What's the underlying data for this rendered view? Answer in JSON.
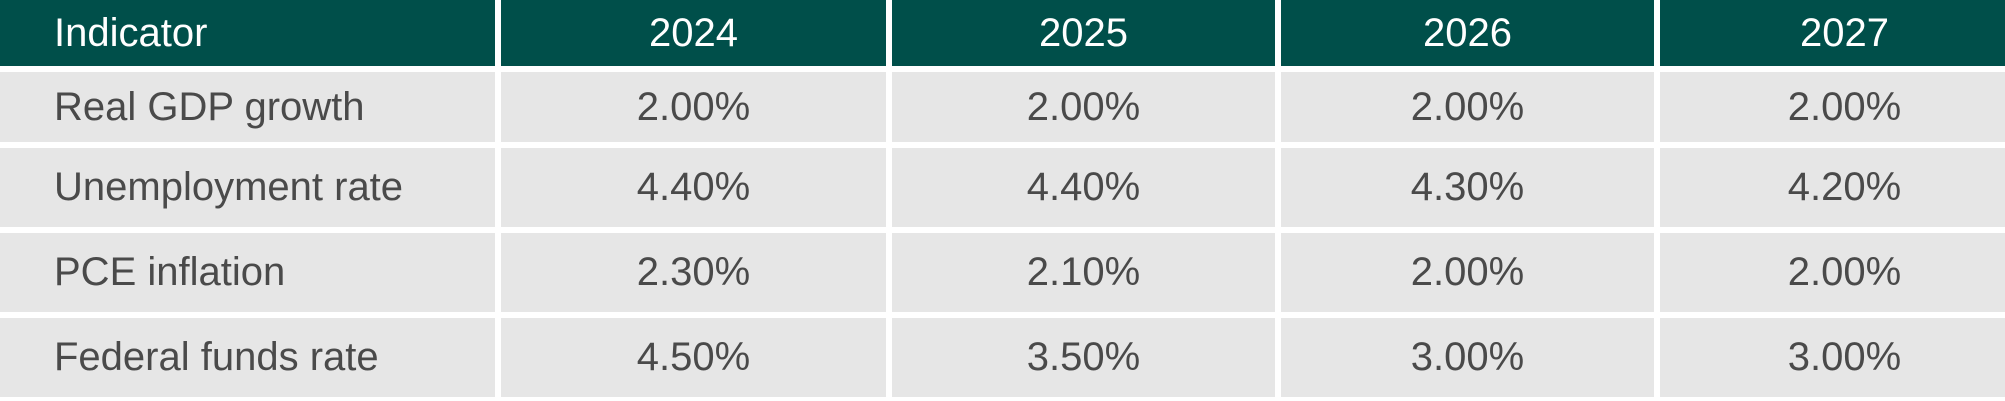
{
  "table": {
    "headers": [
      "Indicator",
      "2024",
      "2025",
      "2026",
      "2027"
    ],
    "rows": [
      [
        "Real GDP growth",
        "2.00%",
        "2.00%",
        "2.00%",
        "2.00%"
      ],
      [
        "Unemployment rate",
        "4.40%",
        "4.40%",
        "4.30%",
        "4.20%"
      ],
      [
        "PCE inflation",
        "2.30%",
        "2.10%",
        "2.00%",
        "2.00%"
      ],
      [
        "Federal funds rate",
        "4.50%",
        "3.50%",
        "3.00%",
        "3.00%"
      ]
    ],
    "colors": {
      "header_bg": "#004f4a",
      "header_text": "#ffffff",
      "body_bg": "#e6e6e6",
      "body_text": "#4a4a4a"
    }
  }
}
